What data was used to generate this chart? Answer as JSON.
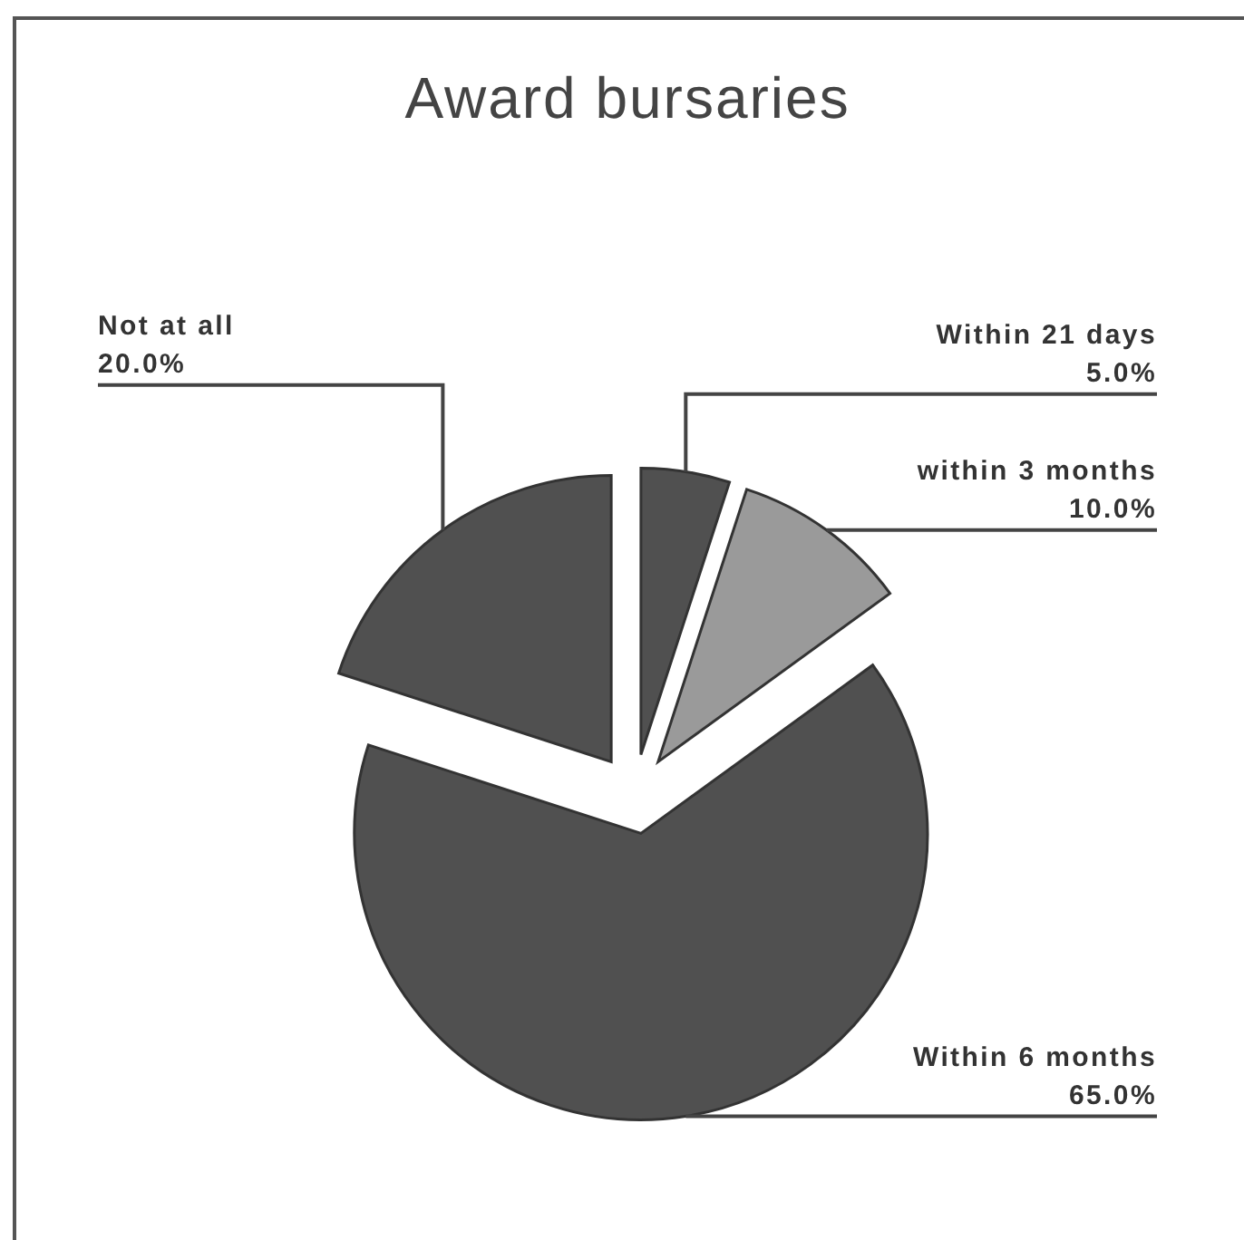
{
  "chart_data": {
    "type": "pie",
    "title": "Award bursaries",
    "categories": [
      "Within 21 days",
      "within 3 months",
      "Within 6 months",
      "Not at all"
    ],
    "values": [
      5,
      10,
      65,
      20
    ],
    "colors": [
      "#505050",
      "#9a9a9a",
      "#505050",
      "#505050"
    ],
    "value_labels": [
      "5.0%",
      "10.0%",
      "65.0%",
      "20.0%"
    ]
  }
}
